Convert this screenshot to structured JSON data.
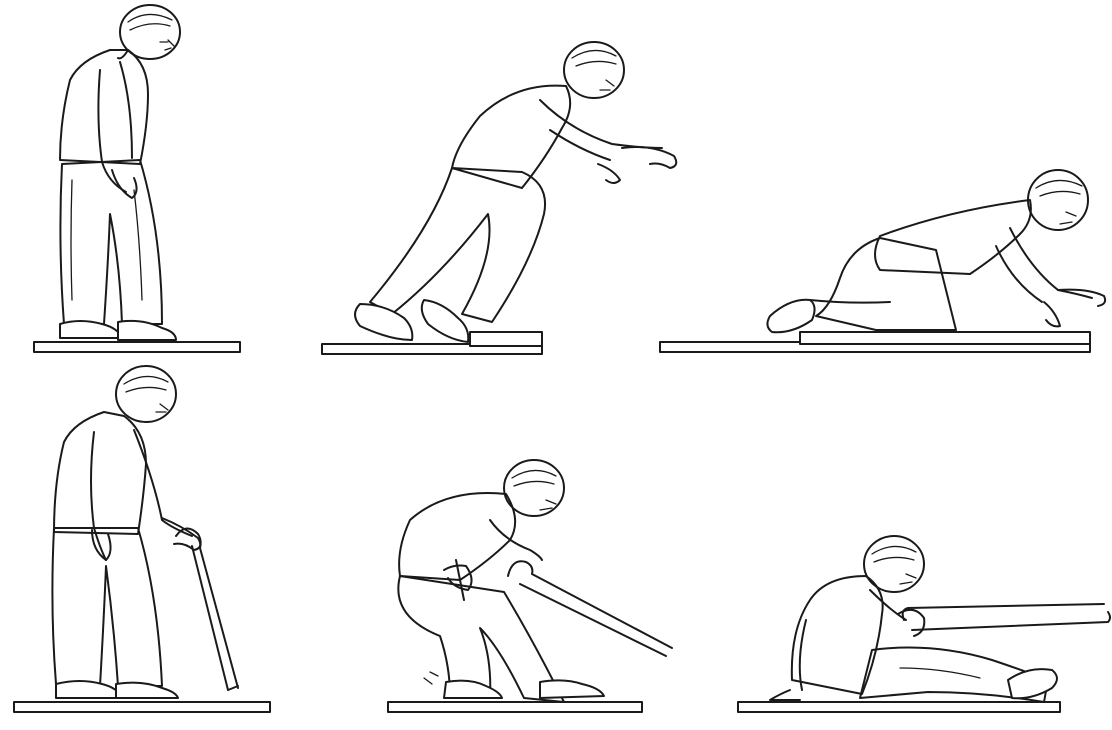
{
  "scene": {
    "panels": [
      {
        "id": "p1",
        "icon": "elderly-man-standing-icon"
      },
      {
        "id": "p2",
        "icon": "elderly-man-tripping-on-step-icon"
      },
      {
        "id": "p3",
        "icon": "elderly-man-fallen-on-knees-icon"
      },
      {
        "id": "p4",
        "icon": "elderly-man-with-cane-icon"
      },
      {
        "id": "p5",
        "icon": "elderly-man-slipping-with-cane-icon"
      },
      {
        "id": "p6",
        "icon": "elderly-man-fallen-sitting-with-cane-icon"
      }
    ],
    "colors": {
      "ink": "#1a1a1a",
      "paper": "#ffffff"
    }
  }
}
